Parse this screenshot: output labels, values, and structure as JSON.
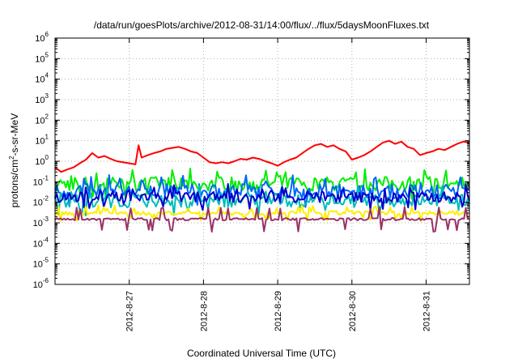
{
  "chart_data": {
    "type": "line",
    "title": "/data/run/goesPlots/archive/2012-08-31/14:00/flux/../flux/5daysMoonFluxes.txt",
    "xlabel": "Coordinated Universal Time (UTC)",
    "ylabel": {
      "prefix": "protons/cm",
      "sup": "2",
      "suffix": "-s-sr-MeV"
    },
    "x_scale": "time",
    "xlim": [
      "2012-08-26T00:00",
      "2012-08-31T14:00"
    ],
    "x_ticks": [
      {
        "date": "2012-08-27T00:00",
        "label": "2012-8-27"
      },
      {
        "date": "2012-08-28T00:00",
        "label": "2012-8-28"
      },
      {
        "date": "2012-08-29T00:00",
        "label": "2012-8-29"
      },
      {
        "date": "2012-08-30T00:00",
        "label": "2012-8-30"
      },
      {
        "date": "2012-08-31T00:00",
        "label": "2012-8-31"
      }
    ],
    "y_scale": "log",
    "ylim": [
      1e-06,
      1000000.0
    ],
    "y_ticks": [
      {
        "value": 1e-06,
        "base": "10",
        "exp": "-6"
      },
      {
        "value": 1e-05,
        "base": "10",
        "exp": "-5"
      },
      {
        "value": 0.0001,
        "base": "10",
        "exp": "-4"
      },
      {
        "value": 0.001,
        "base": "10",
        "exp": "-3"
      },
      {
        "value": 0.01,
        "base": "10",
        "exp": "-2"
      },
      {
        "value": 0.1,
        "base": "10",
        "exp": "-1"
      },
      {
        "value": 1,
        "base": "10",
        "exp": "0"
      },
      {
        "value": 10,
        "base": "10",
        "exp": "1"
      },
      {
        "value": 100,
        "base": "10",
        "exp": "2"
      },
      {
        "value": 1000,
        "base": "10",
        "exp": "3"
      },
      {
        "value": 10000,
        "base": "10",
        "exp": "4"
      },
      {
        "value": 100000,
        "base": "10",
        "exp": "5"
      },
      {
        "value": 1000000,
        "base": "10",
        "exp": "6"
      }
    ],
    "grid": true,
    "legend": "none",
    "series": [
      {
        "color": "#ff0000",
        "points": [
          [
            "2012-08-26T00:00",
            0.5
          ],
          [
            "2012-08-26T02:00",
            0.3
          ],
          [
            "2012-08-26T04:00",
            0.4
          ],
          [
            "2012-08-26T06:00",
            0.5
          ],
          [
            "2012-08-26T08:00",
            0.8
          ],
          [
            "2012-08-26T10:00",
            1.2
          ],
          [
            "2012-08-26T12:00",
            2.5
          ],
          [
            "2012-08-26T14:00",
            1.5
          ],
          [
            "2012-08-26T16:00",
            1.8
          ],
          [
            "2012-08-26T18:00",
            1.3
          ],
          [
            "2012-08-26T20:00",
            1.0
          ],
          [
            "2012-08-26T22:00",
            0.9
          ],
          [
            "2012-08-27T00:00",
            0.8
          ],
          [
            "2012-08-27T02:00",
            0.7
          ],
          [
            "2012-08-27T03:00",
            6.0
          ],
          [
            "2012-08-27T04:00",
            1.5
          ],
          [
            "2012-08-27T06:00",
            2.0
          ],
          [
            "2012-08-27T08:00",
            2.5
          ],
          [
            "2012-08-27T10:00",
            3.0
          ],
          [
            "2012-08-27T12:00",
            4.0
          ],
          [
            "2012-08-27T14:00",
            4.5
          ],
          [
            "2012-08-27T16:00",
            5.0
          ],
          [
            "2012-08-27T18:00",
            4.0
          ],
          [
            "2012-08-27T20:00",
            3.0
          ],
          [
            "2012-08-27T22:00",
            2.5
          ],
          [
            "2012-08-28T00:00",
            1.5
          ],
          [
            "2012-08-28T02:00",
            0.9
          ],
          [
            "2012-08-28T04:00",
            0.8
          ],
          [
            "2012-08-28T06:00",
            0.9
          ],
          [
            "2012-08-28T08:00",
            0.8
          ],
          [
            "2012-08-28T10:00",
            1.0
          ],
          [
            "2012-08-28T12:00",
            1.3
          ],
          [
            "2012-08-28T14:00",
            1.2
          ],
          [
            "2012-08-28T16:00",
            1.5
          ],
          [
            "2012-08-28T18:00",
            1.3
          ],
          [
            "2012-08-28T20:00",
            1.0
          ],
          [
            "2012-08-28T22:00",
            0.8
          ],
          [
            "2012-08-29T00:00",
            0.6
          ],
          [
            "2012-08-29T02:00",
            0.9
          ],
          [
            "2012-08-29T04:00",
            1.2
          ],
          [
            "2012-08-29T06:00",
            1.5
          ],
          [
            "2012-08-29T08:00",
            2.5
          ],
          [
            "2012-08-29T10:00",
            4.0
          ],
          [
            "2012-08-29T12:00",
            6.0
          ],
          [
            "2012-08-29T14:00",
            7.0
          ],
          [
            "2012-08-29T16:00",
            5.0
          ],
          [
            "2012-08-29T18:00",
            6.0
          ],
          [
            "2012-08-29T20:00",
            4.0
          ],
          [
            "2012-08-29T22:00",
            3.0
          ],
          [
            "2012-08-30T00:00",
            1.2
          ],
          [
            "2012-08-30T02:00",
            1.5
          ],
          [
            "2012-08-30T04:00",
            2.0
          ],
          [
            "2012-08-30T06:00",
            3.0
          ],
          [
            "2012-08-30T08:00",
            5.0
          ],
          [
            "2012-08-30T10:00",
            8.0
          ],
          [
            "2012-08-30T12:00",
            10.0
          ],
          [
            "2012-08-30T14:00",
            7.0
          ],
          [
            "2012-08-30T16:00",
            9.0
          ],
          [
            "2012-08-30T18:00",
            5.0
          ],
          [
            "2012-08-30T20:00",
            4.0
          ],
          [
            "2012-08-30T22:00",
            2.0
          ],
          [
            "2012-08-31T00:00",
            2.5
          ],
          [
            "2012-08-31T02:00",
            3.0
          ],
          [
            "2012-08-31T04:00",
            4.0
          ],
          [
            "2012-08-31T06:00",
            3.5
          ],
          [
            "2012-08-31T08:00",
            5.0
          ],
          [
            "2012-08-31T10:00",
            7.0
          ],
          [
            "2012-08-31T12:00",
            9.0
          ],
          [
            "2012-08-31T14:00",
            8.0
          ]
        ]
      },
      {
        "color": "#00ee00",
        "level": 0.08,
        "spread": 0.35,
        "dips": 0.4
      },
      {
        "color": "#0066ff",
        "level": 0.035,
        "spread": 0.35,
        "dips": 0.45
      },
      {
        "color": "#00bbbb",
        "level": 0.012,
        "spread": 0.3,
        "dips": 0.45
      },
      {
        "color": "#0000cc",
        "level": 0.018,
        "spread": 0.25,
        "dips": 0.4
      },
      {
        "color": "#ffee00",
        "level": 0.003,
        "spread": 0.1,
        "dips": 0.3
      },
      {
        "color": "#993366",
        "level": 0.0015,
        "spread": 0.06,
        "dips": 0.55
      }
    ]
  }
}
